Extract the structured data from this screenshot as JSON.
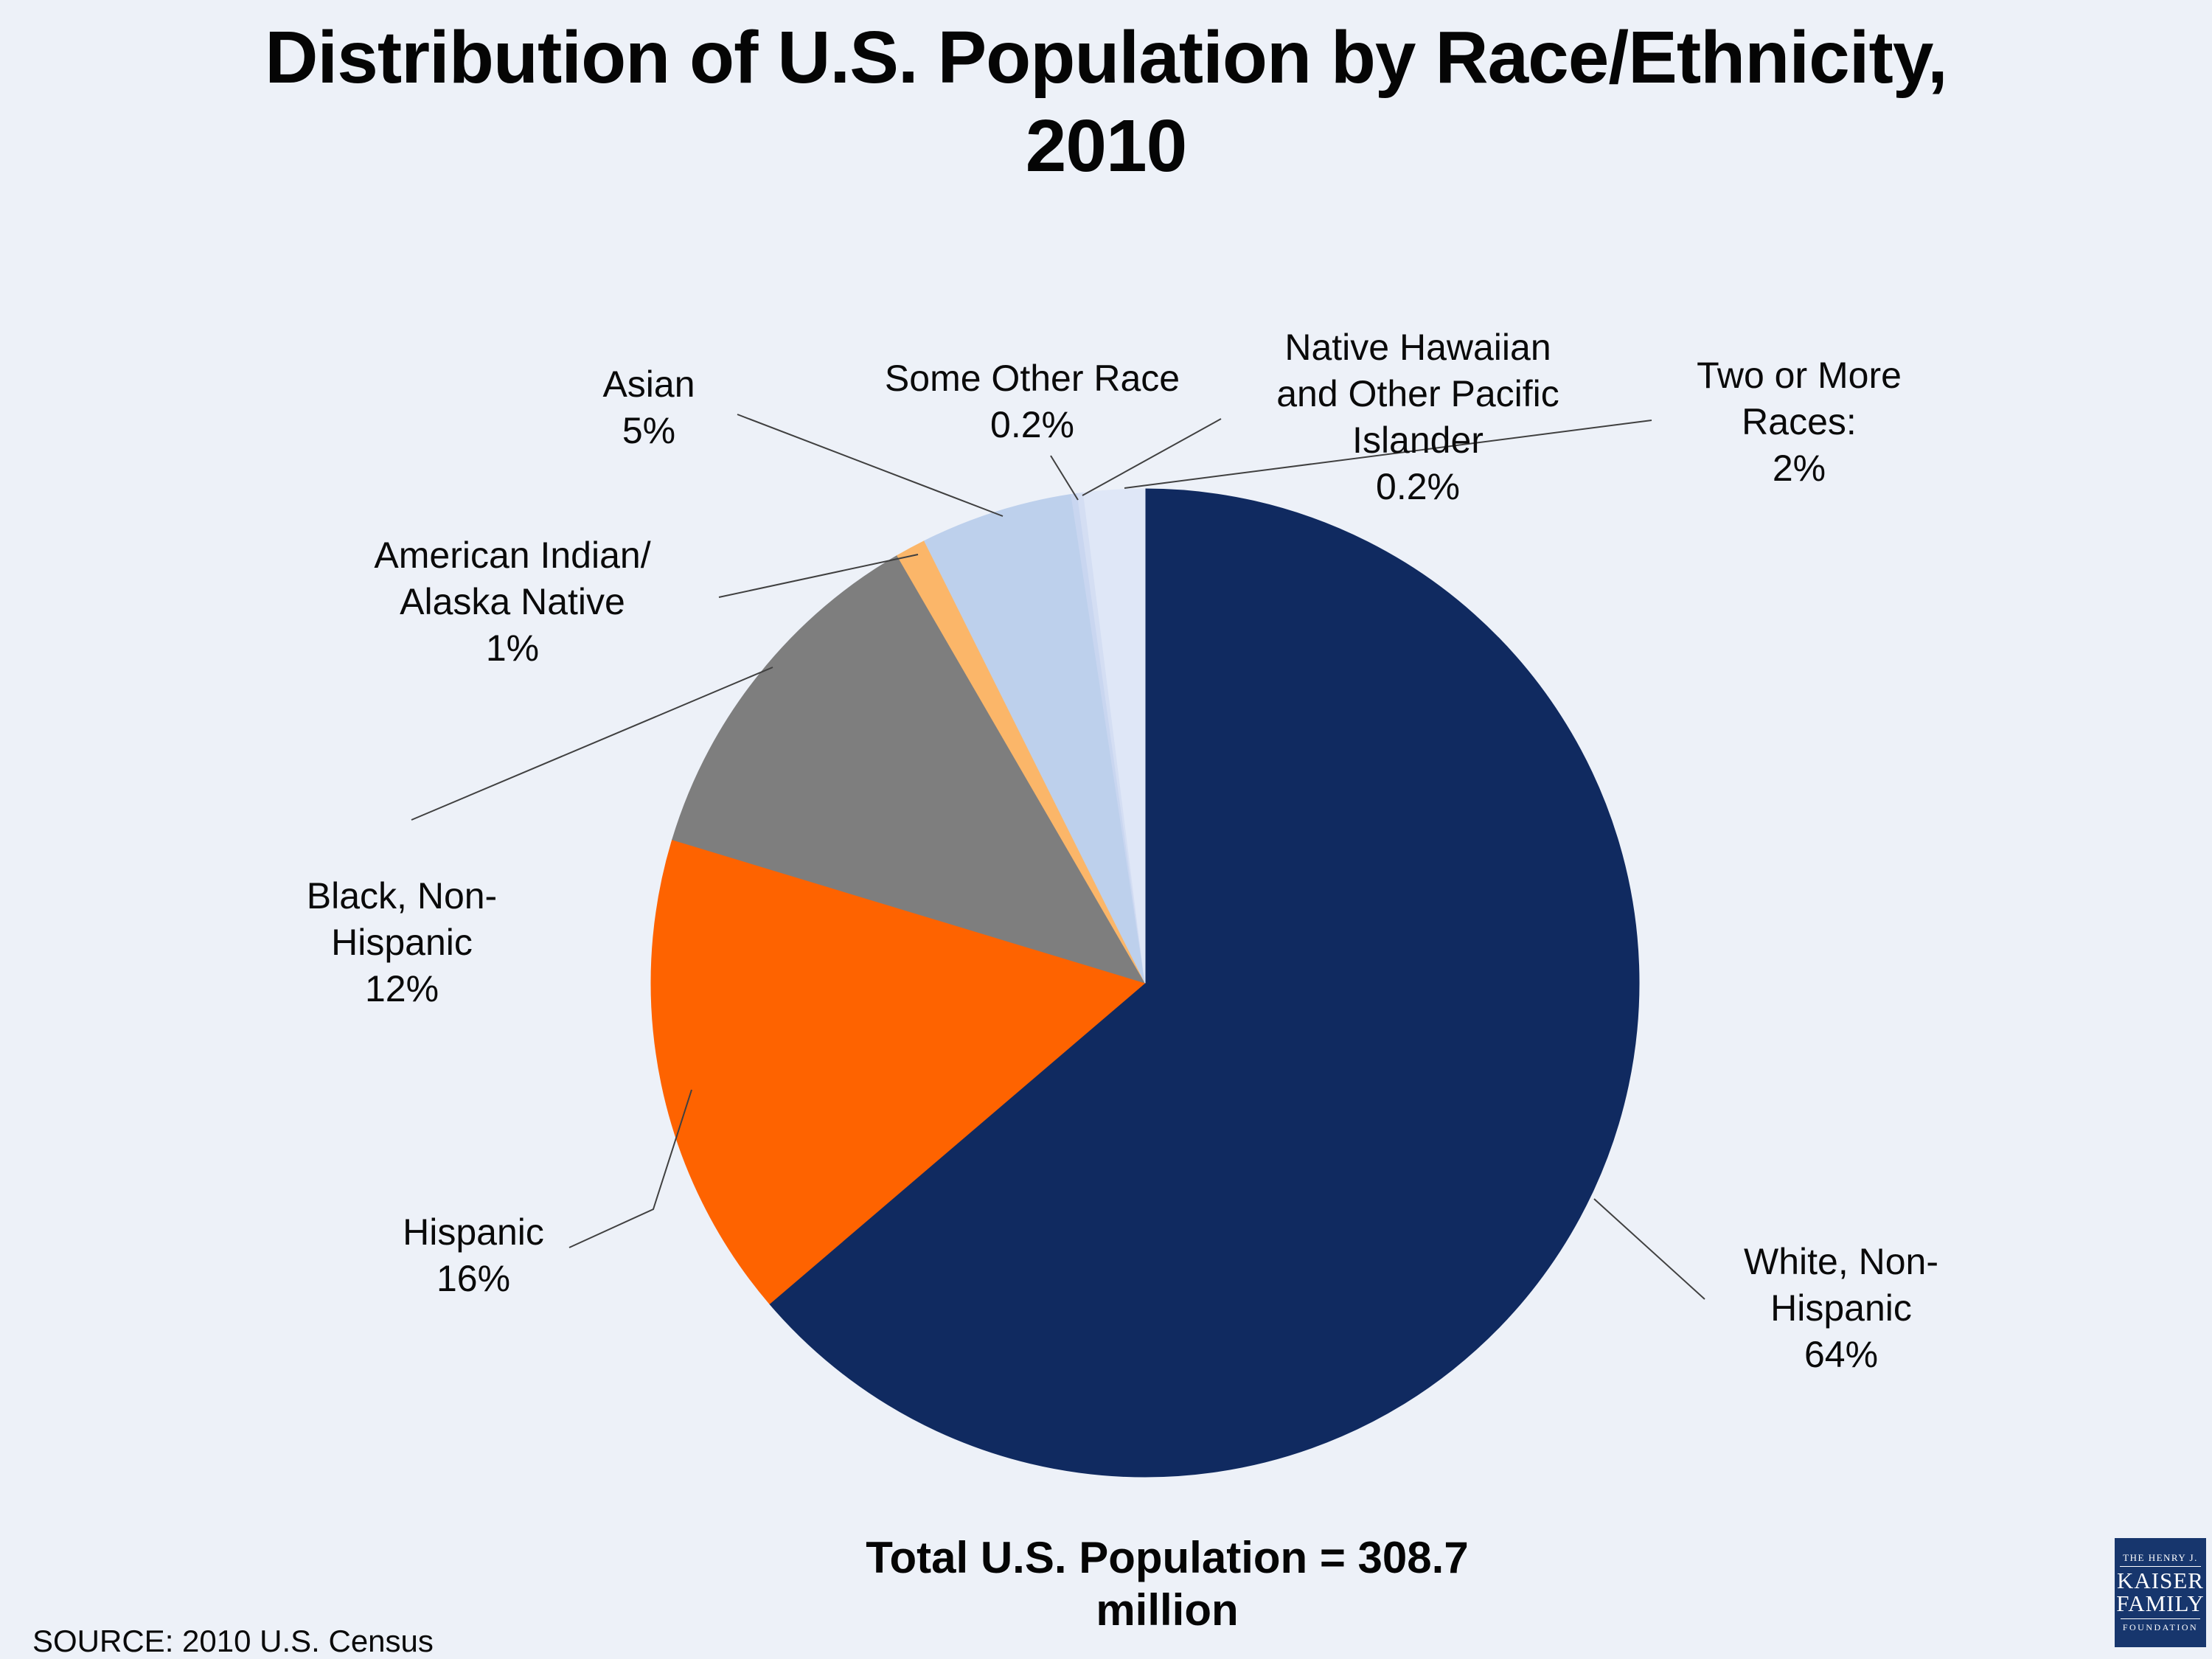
{
  "title": {
    "line1": "Distribution of U.S. Population by Race/Ethnicity,",
    "line2": "2010"
  },
  "callouts": {
    "asian": "Asian\n5%",
    "some_other": "Some Other Race\n0.2%",
    "native_hawaiian": "Native Hawaiian\nand Other Pacific\nIslander\n0.2%",
    "two_or_more": "Two or More\nRaces:\n2%",
    "am_indian": "American Indian/\nAlaska Native\n1%",
    "black": "Black, Non-\nHispanic\n12%",
    "hispanic": "Hispanic\n16%",
    "white": "White, Non-\nHispanic\n64%"
  },
  "footer": {
    "total": "Total U.S. Population = 308.7\nmillion",
    "source": "SOURCE: 2010 U.S. Census"
  },
  "logo": {
    "line1": "THE HENRY J.",
    "line2": "KAISER",
    "line3": "FAMILY",
    "line4": "FOUNDATION"
  },
  "colors": {
    "background": "#edf1f8",
    "leader_line": "#404040",
    "logo_navy": "#17366d"
  },
  "chart_data": {
    "type": "pie",
    "title": "Distribution of U.S. Population by Race/Ethnicity, 2010",
    "total_label": "Total U.S. Population = 308.7 million",
    "source": "SOURCE: 2010 U.S. Census",
    "start_angle_deg": 0,
    "direction": "clockwise",
    "legend_position": "callouts-with-leader-lines",
    "slices": [
      {
        "id": "white-non-hispanic",
        "label": "White, Non-Hispanic",
        "pct": 64,
        "color": "#102a60"
      },
      {
        "id": "hispanic",
        "label": "Hispanic",
        "pct": 16,
        "color": "#fe6300"
      },
      {
        "id": "black-non-hispanic",
        "label": "Black, Non-Hispanic",
        "pct": 12,
        "color": "#7e7e7e"
      },
      {
        "id": "american-indian-alaska-native",
        "label": "American Indian/Alaska Native",
        "pct": 1,
        "color": "#fbb669"
      },
      {
        "id": "asian",
        "label": "Asian",
        "pct": 5,
        "color": "#bdd0ec"
      },
      {
        "id": "some-other-race",
        "label": "Some Other Race",
        "pct": 0.2,
        "color": "#c9d6f0"
      },
      {
        "id": "native-hawaiian-pacific-islander",
        "label": "Native Hawaiian and Other Pacific Islander",
        "pct": 0.2,
        "color": "#d4def3"
      },
      {
        "id": "two-or-more-races",
        "label": "Two or More Races",
        "pct": 2,
        "color": "#dfe7f7"
      }
    ]
  }
}
